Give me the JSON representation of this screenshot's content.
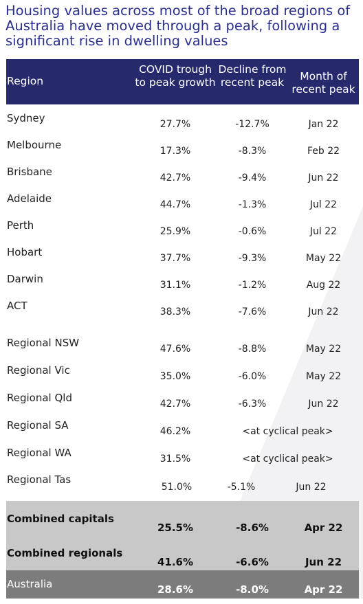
{
  "title": "Housing values across most of the broad regions of Australia have moved through a peak, following a significant rise in dwelling values",
  "chart_data": {
    "type": "table",
    "columns": [
      "Region",
      "COVID trough to peak growth",
      "Decline from recent peak",
      "Month of recent peak"
    ],
    "rows": [
      {
        "region": "Sydney",
        "growth": "27.7%",
        "decline": "-12.7%",
        "month": "Jan 22"
      },
      {
        "region": "Melbourne",
        "growth": "17.3%",
        "decline": "-8.3%",
        "month": "Feb 22"
      },
      {
        "region": "Brisbane",
        "growth": "42.7%",
        "decline": "-9.4%",
        "month": "Jun 22"
      },
      {
        "region": "Adelaide",
        "growth": "44.7%",
        "decline": "-1.3%",
        "month": "Jul 22"
      },
      {
        "region": "Perth",
        "growth": "25.9%",
        "decline": "-0.6%",
        "month": "Jul 22"
      },
      {
        "region": "Hobart",
        "growth": "37.7%",
        "decline": "-9.3%",
        "month": "May 22"
      },
      {
        "region": "Darwin",
        "growth": "31.1%",
        "decline": "-1.2%",
        "month": "Aug 22"
      },
      {
        "region": "ACT",
        "growth": "38.3%",
        "decline": "-7.6%",
        "month": "Jun 22"
      },
      {
        "region": "Regional NSW",
        "growth": "47.6%",
        "decline": "-8.8%",
        "month": "May 22"
      },
      {
        "region": "Regional Vic",
        "growth": "35.0%",
        "decline": "-6.0%",
        "month": "May 22"
      },
      {
        "region": "Regional Qld",
        "growth": "42.7%",
        "decline": "-6.3%",
        "month": "Jun 22"
      },
      {
        "region": "Regional SA",
        "growth": "46.2%",
        "note": "<at cyclical peak>"
      },
      {
        "region": "Regional WA",
        "growth": "31.5%",
        "note": "<at cyclical peak>"
      },
      {
        "region": "Regional Tas",
        "growth": "51.0%",
        "decline": "-5.1%",
        "month": "Jun 22"
      },
      {
        "region": "Combined capitals",
        "growth": "25.5%",
        "decline": "-8.6%",
        "month": "Apr 22"
      },
      {
        "region": "Combined regionals",
        "growth": "41.6%",
        "decline": "-6.6%",
        "month": "Jun 22"
      },
      {
        "region": "Australia",
        "growth": "28.6%",
        "decline": "-8.0%",
        "month": "Apr 22"
      }
    ]
  }
}
